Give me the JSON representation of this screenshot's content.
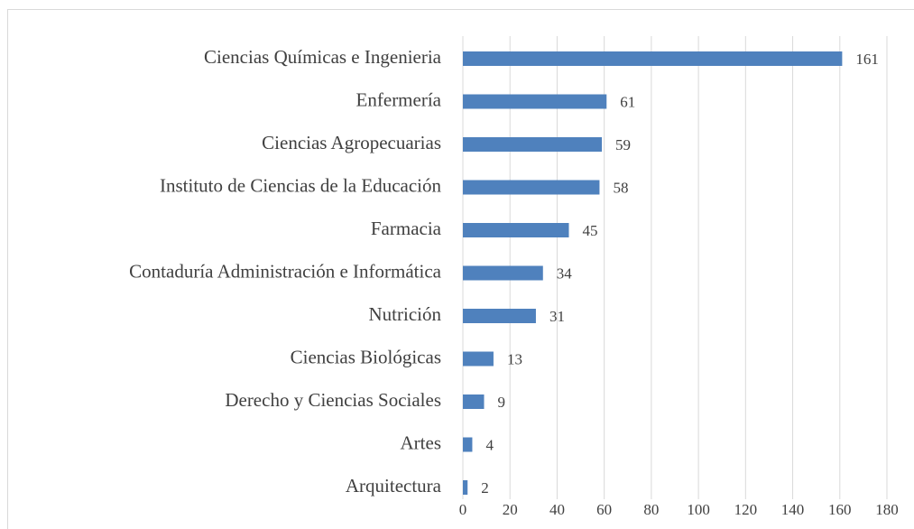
{
  "chart_data": {
    "type": "bar",
    "orientation": "horizontal",
    "categories": [
      "Ciencias Químicas e Ingenieria",
      "Enfermería",
      "Ciencias Agropecuarias",
      "Instituto de Ciencias de la Educación",
      "Farmacia",
      "Contaduría Administración e Informática",
      "Nutrición",
      "Ciencias Biológicas",
      "Derecho y Ciencias Sociales",
      "Artes",
      "Arquitectura"
    ],
    "values": [
      161,
      61,
      59,
      58,
      45,
      34,
      31,
      13,
      9,
      4,
      2
    ],
    "color": "#4f81bd",
    "xlim": [
      0,
      180
    ],
    "xticks": [
      0,
      20,
      40,
      60,
      80,
      100,
      120,
      140,
      160,
      180
    ],
    "grid": true
  }
}
